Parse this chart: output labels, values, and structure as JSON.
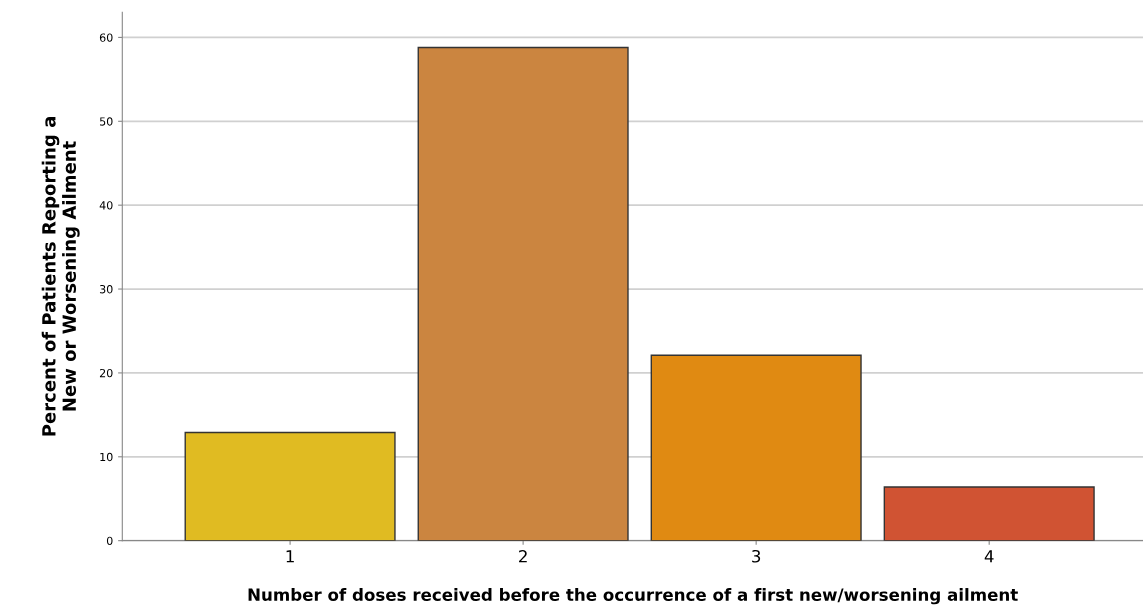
{
  "chart_data": {
    "type": "bar",
    "xlabel": "Number of doses received before the occurrence of a first new/worsening ailment",
    "ylabel": "Percent of Patients Reporting a\nNew or Worsening Ailment",
    "categories": [
      "1",
      "2",
      "3",
      "4"
    ],
    "values": [
      12.9,
      58.8,
      22.1,
      6.4
    ],
    "colors": [
      "#e0bb22",
      "#cb8540",
      "#e08a12",
      "#d05333"
    ],
    "ylim": [
      0,
      63
    ],
    "yticks": [
      0,
      10,
      20,
      30,
      40,
      50,
      60
    ],
    "grid": "y"
  }
}
